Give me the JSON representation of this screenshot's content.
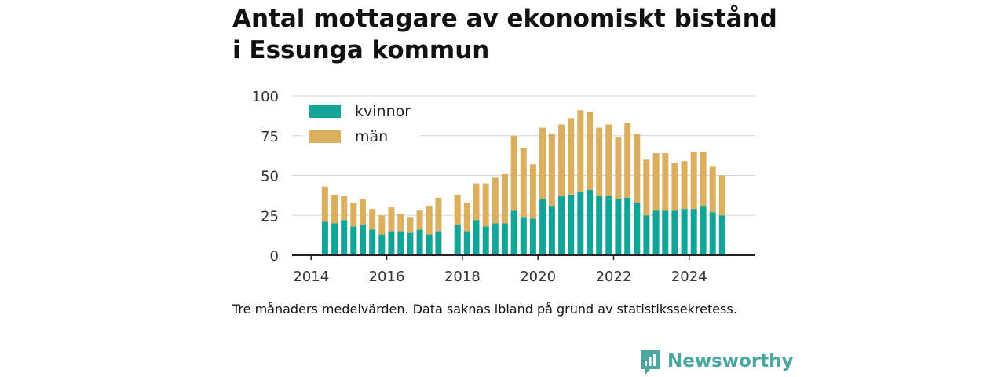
{
  "title_line1": "Antal mottagare av ekonomiskt bistånd",
  "title_line2": "i Essunga kommun",
  "footnote": "Tre månaders medelvärden. Data saknas ibland på grund av statistikssekretess.",
  "brand": {
    "name": "Newsworthy",
    "icon": "newsworthy-logo-icon",
    "color": "#4ca7a0"
  },
  "chart_data": {
    "type": "bar",
    "stacked": true,
    "x_type": "date",
    "ylim": [
      0,
      100
    ],
    "yticks": [
      0,
      25,
      50,
      75,
      100
    ],
    "xlim": [
      "2013-07-01",
      "2025-10-01"
    ],
    "xticks": [
      "2014",
      "2016",
      "2018",
      "2020",
      "2022",
      "2024"
    ],
    "xtick_dates": [
      "2014-01-01",
      "2016-01-01",
      "2018-01-01",
      "2020-01-01",
      "2022-01-01",
      "2024-01-01"
    ],
    "grid": "horizontal",
    "legend_position": "top-left",
    "x": [
      "2014-05",
      "2014-08",
      "2014-11",
      "2015-02",
      "2015-05",
      "2015-08",
      "2015-11",
      "2016-02",
      "2016-05",
      "2016-08",
      "2016-11",
      "2017-02",
      "2017-05",
      "2017-08",
      "2017-11",
      "2018-02",
      "2018-05",
      "2018-08",
      "2018-11",
      "2019-02",
      "2019-05",
      "2019-08",
      "2019-11",
      "2020-02",
      "2020-05",
      "2020-08",
      "2020-11",
      "2021-02",
      "2021-05",
      "2021-08",
      "2021-11",
      "2022-02",
      "2022-05",
      "2022-08",
      "2022-11",
      "2023-02",
      "2023-05",
      "2023-08",
      "2023-11",
      "2024-02",
      "2024-05",
      "2024-08",
      "2024-11"
    ],
    "series": [
      {
        "name": "kvinnor",
        "color": "#11a497",
        "values": [
          21,
          20,
          22,
          18,
          19,
          16,
          13,
          15,
          15,
          14,
          16,
          13,
          15,
          null,
          19,
          15,
          22,
          18,
          20,
          20,
          28,
          24,
          23,
          35,
          31,
          37,
          38,
          40,
          41,
          37,
          37,
          35,
          36,
          33,
          25,
          28,
          28,
          28,
          29,
          29,
          31,
          27,
          25
        ]
      },
      {
        "name": "män",
        "color": "#dcaf5e",
        "values": [
          22,
          18,
          15,
          15,
          16,
          13,
          12,
          15,
          11,
          10,
          12,
          18,
          21,
          null,
          19,
          18,
          23,
          27,
          29,
          31,
          47,
          43,
          34,
          45,
          45,
          45,
          48,
          51,
          49,
          43,
          45,
          39,
          47,
          43,
          35,
          36,
          36,
          30,
          30,
          36,
          34,
          29,
          25
        ]
      }
    ]
  }
}
